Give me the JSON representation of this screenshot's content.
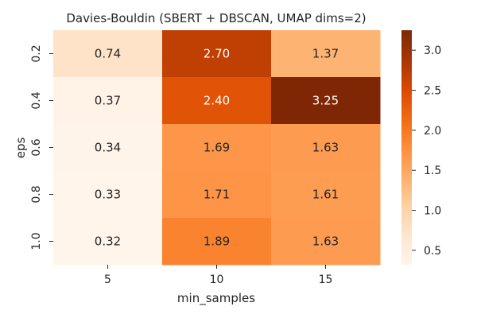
{
  "chart_data": {
    "type": "heatmap",
    "title": "Davies-Bouldin (SBERT + DBSCAN, UMAP dims=2)",
    "xlabel": "min_samples",
    "ylabel": "eps",
    "x_categories": [
      "5",
      "10",
      "15"
    ],
    "y_categories": [
      "0.2",
      "0.4",
      "0.6",
      "0.8",
      "1.0"
    ],
    "values": [
      [
        0.74,
        2.7,
        1.37
      ],
      [
        0.37,
        2.4,
        3.25
      ],
      [
        0.34,
        1.69,
        1.63
      ],
      [
        0.33,
        1.71,
        1.61
      ],
      [
        0.32,
        1.89,
        1.63
      ]
    ],
    "value_labels": [
      [
        "0.74",
        "2.70",
        "1.37"
      ],
      [
        "0.37",
        "2.40",
        "3.25"
      ],
      [
        "0.34",
        "1.69",
        "1.63"
      ],
      [
        "0.33",
        "1.71",
        "1.61"
      ],
      [
        "0.32",
        "1.89",
        "1.63"
      ]
    ],
    "colormap": "Oranges",
    "color_range": [
      0.32,
      3.25
    ],
    "colorbar_ticks": [
      "0.5",
      "1.0",
      "1.5",
      "2.0",
      "2.5",
      "3.0"
    ],
    "grid": false
  }
}
